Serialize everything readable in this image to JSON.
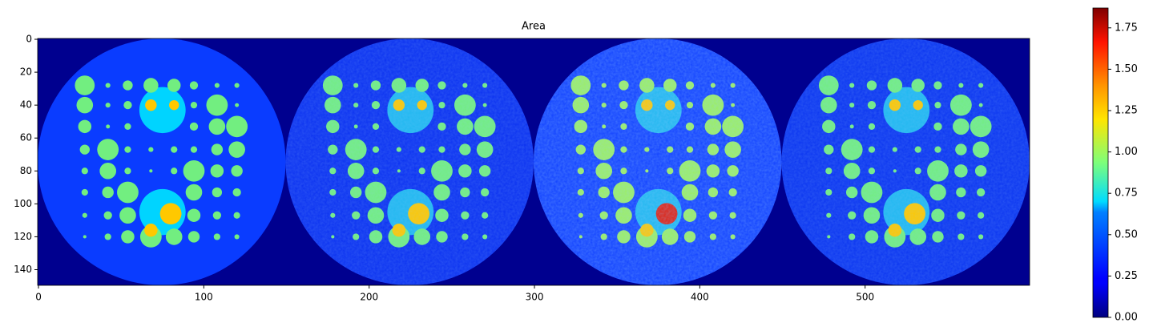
{
  "chart_data": {
    "type": "image",
    "title": "Area",
    "xlim": [
      -0.5,
      599.5
    ],
    "xticks": [
      0,
      100,
      200,
      300,
      400,
      500
    ],
    "ylim": [
      149.5,
      -0.5
    ],
    "yticks": [
      0,
      20,
      40,
      60,
      80,
      100,
      120,
      140
    ],
    "colormap": "jet",
    "colorbar": {
      "lim": [
        0,
        1.87
      ],
      "ticks": [
        {
          "value": 0,
          "label": "0.00"
        },
        {
          "value": 0.25,
          "label": "0.25"
        },
        {
          "value": 0.5,
          "label": "0.50"
        },
        {
          "value": 0.75,
          "label": "0.75"
        },
        {
          "value": 1,
          "label": "1.00"
        },
        {
          "value": 1.25,
          "label": "1.25"
        },
        {
          "value": 1.5,
          "label": "1.50"
        },
        {
          "value": 1.75,
          "label": "1.75"
        }
      ]
    }
  }
}
